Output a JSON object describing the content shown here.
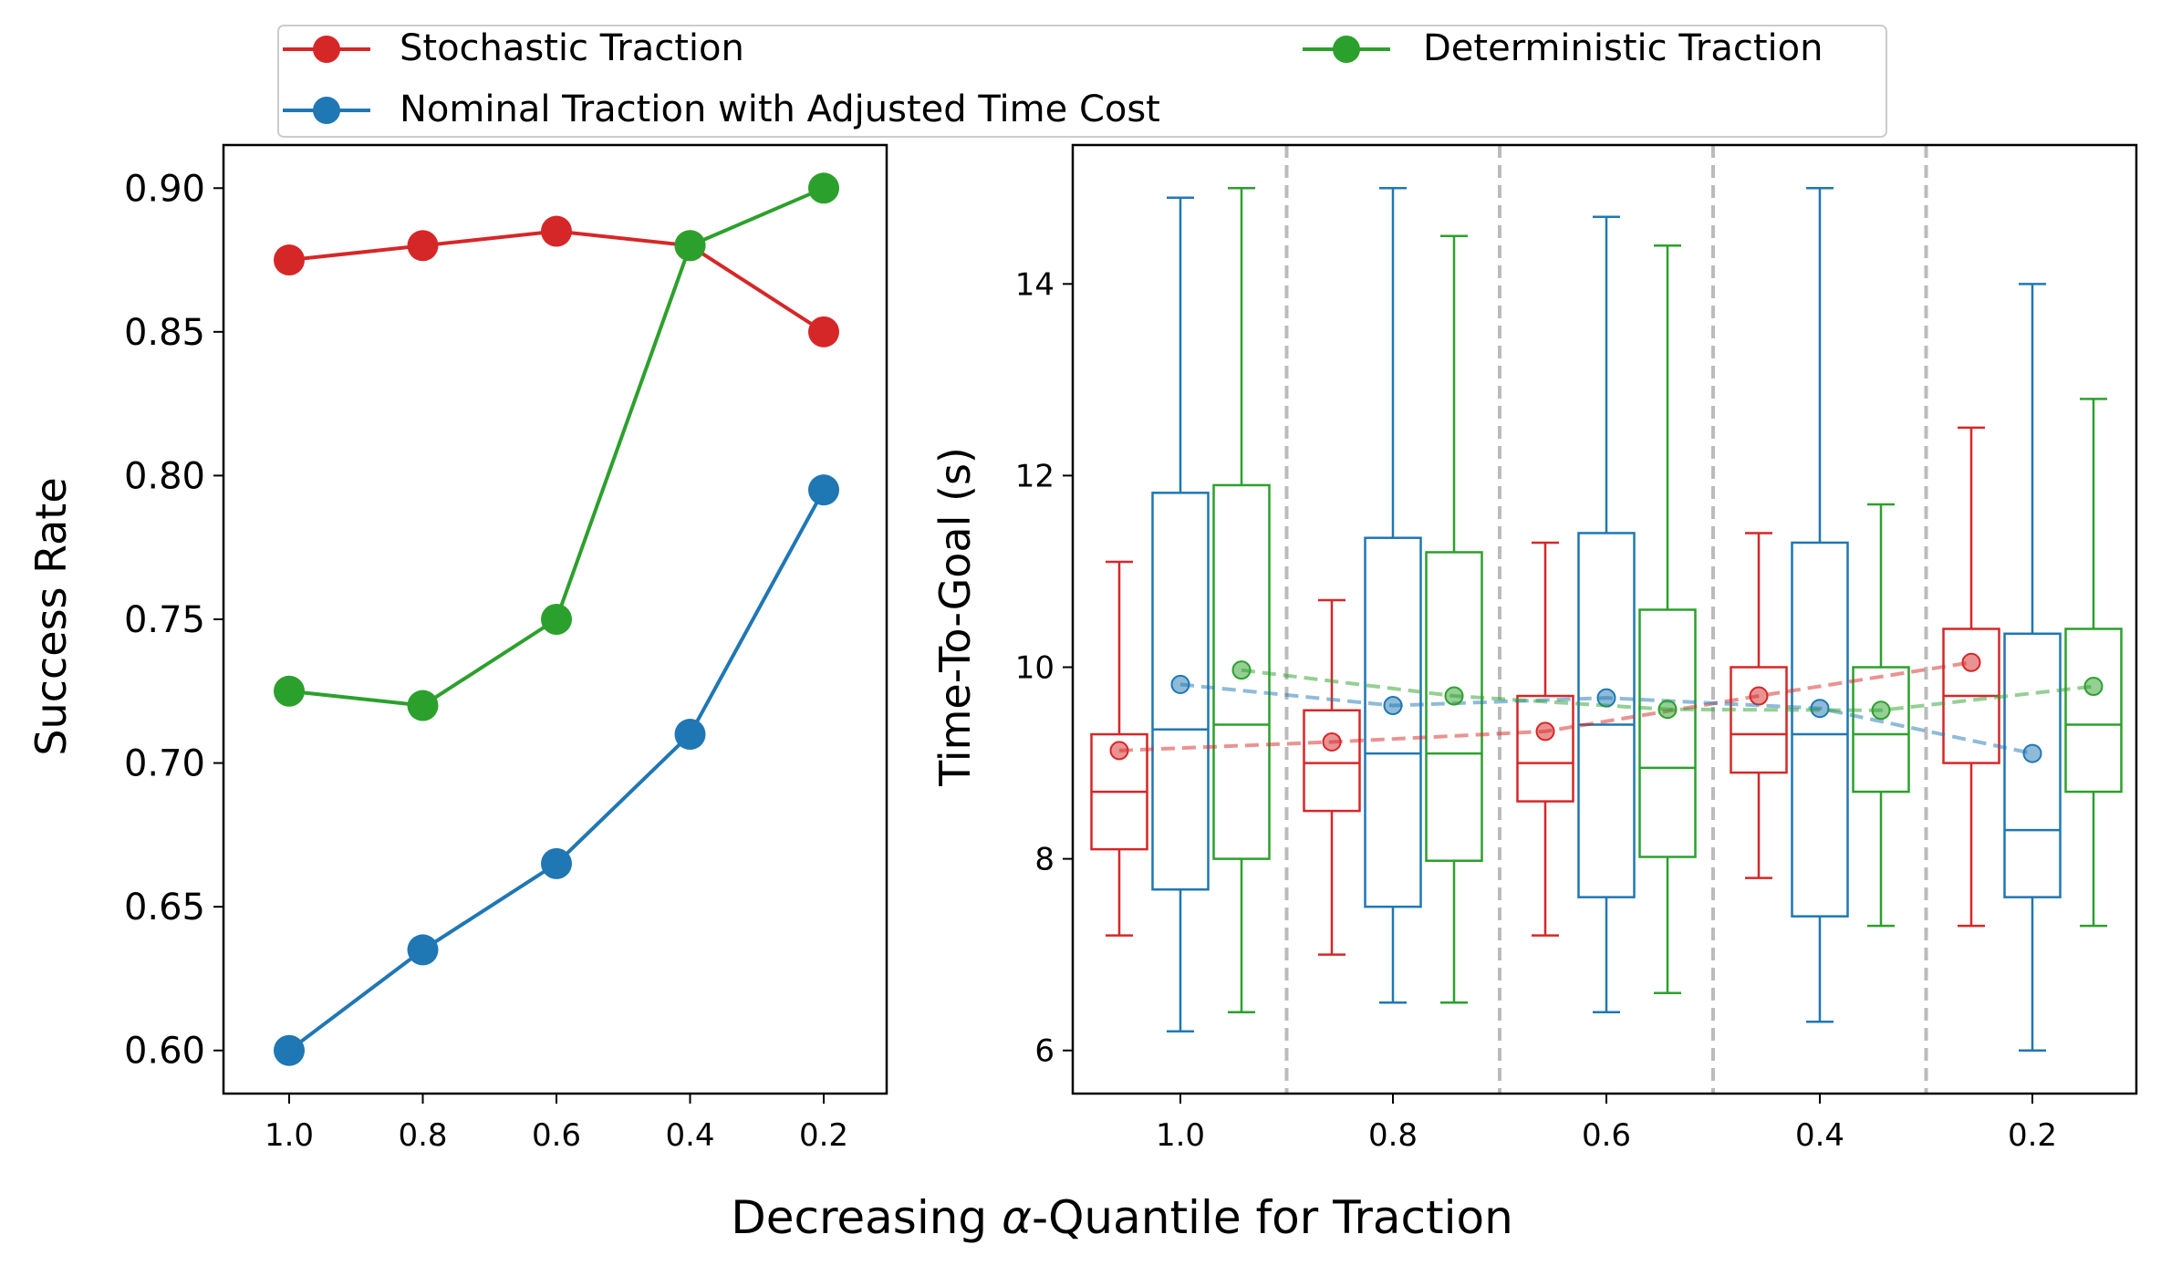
{
  "figure": {
    "xlabel_prefix": "Decreasing ",
    "xlabel_symbol": "α",
    "xlabel_suffix": "-Quantile for Traction"
  },
  "legend": {
    "placement": "top-center",
    "entries": [
      {
        "label": "Stochastic Traction",
        "color": "#d62728"
      },
      {
        "label": "Nominal Traction with Adjusted Time Cost",
        "color": "#1f77b4"
      },
      {
        "label": "Deterministic Traction",
        "color": "#2ca02c"
      }
    ]
  },
  "chart_data": [
    {
      "type": "line",
      "xlabel": "",
      "ylabel": "Success Rate",
      "categories": [
        "1.0",
        "0.8",
        "0.6",
        "0.4",
        "0.2"
      ],
      "ylim": [
        0.585,
        0.915
      ],
      "yticks": [
        "0.60",
        "0.65",
        "0.70",
        "0.75",
        "0.80",
        "0.85",
        "0.90"
      ],
      "grid": false,
      "series": [
        {
          "name": "Stochastic Traction",
          "color": "#d62728",
          "values": [
            0.875,
            0.88,
            0.885,
            0.88,
            0.85
          ]
        },
        {
          "name": "Nominal Traction with Adjusted Time Cost",
          "color": "#1f77b4",
          "values": [
            0.6,
            0.635,
            0.665,
            0.71,
            0.795
          ]
        },
        {
          "name": "Deterministic Traction",
          "color": "#2ca02c",
          "values": [
            0.725,
            0.72,
            0.75,
            0.88,
            0.9
          ]
        }
      ]
    },
    {
      "type": "box",
      "xlabel": "",
      "ylabel": "Time-To-Goal (s)",
      "categories": [
        "1.0",
        "0.8",
        "0.6",
        "0.4",
        "0.2"
      ],
      "ylim": [
        5.55,
        15.45
      ],
      "yticks": [
        "6",
        "8",
        "10",
        "12",
        "14"
      ],
      "grid": false,
      "group_separators": "dashed",
      "series": [
        {
          "name": "Stochastic Traction",
          "color": "#d62728",
          "boxes": [
            {
              "whislo": 7.2,
              "q1": 8.1,
              "med": 8.7,
              "q3": 9.3,
              "whishi": 11.1,
              "mean": 9.13
            },
            {
              "whislo": 7.0,
              "q1": 8.5,
              "med": 9.0,
              "q3": 9.55,
              "whishi": 10.7,
              "mean": 9.22
            },
            {
              "whislo": 7.2,
              "q1": 8.6,
              "med": 9.0,
              "q3": 9.7,
              "whishi": 11.3,
              "mean": 9.33
            },
            {
              "whislo": 7.8,
              "q1": 8.9,
              "med": 9.3,
              "q3": 10.0,
              "whishi": 11.4,
              "mean": 9.7
            },
            {
              "whislo": 7.3,
              "q1": 9.0,
              "med": 9.7,
              "q3": 10.4,
              "whishi": 12.5,
              "mean": 10.05
            }
          ]
        },
        {
          "name": "Nominal Traction with Adjusted Time Cost",
          "color": "#1f77b4",
          "boxes": [
            {
              "whislo": 6.2,
              "q1": 7.68,
              "med": 9.35,
              "q3": 11.82,
              "whishi": 14.9,
              "mean": 9.82
            },
            {
              "whislo": 6.5,
              "q1": 7.5,
              "med": 9.1,
              "q3": 11.35,
              "whishi": 15.0,
              "mean": 9.6
            },
            {
              "whislo": 6.4,
              "q1": 7.6,
              "med": 9.4,
              "q3": 11.4,
              "whishi": 14.7,
              "mean": 9.68
            },
            {
              "whislo": 6.3,
              "q1": 7.4,
              "med": 9.3,
              "q3": 11.3,
              "whishi": 15.0,
              "mean": 9.57
            },
            {
              "whislo": 6.0,
              "q1": 7.6,
              "med": 8.3,
              "q3": 10.35,
              "whishi": 14.0,
              "mean": 9.1
            }
          ]
        },
        {
          "name": "Deterministic Traction",
          "color": "#2ca02c",
          "boxes": [
            {
              "whislo": 6.4,
              "q1": 8.0,
              "med": 9.4,
              "q3": 11.9,
              "whishi": 15.0,
              "mean": 9.97
            },
            {
              "whislo": 6.5,
              "q1": 7.98,
              "med": 9.1,
              "q3": 11.2,
              "whishi": 14.5,
              "mean": 9.7
            },
            {
              "whislo": 6.6,
              "q1": 8.02,
              "med": 8.95,
              "q3": 10.6,
              "whishi": 14.4,
              "mean": 9.56
            },
            {
              "whislo": 7.3,
              "q1": 8.7,
              "med": 9.3,
              "q3": 10.0,
              "whishi": 11.7,
              "mean": 9.55
            },
            {
              "whislo": 7.3,
              "q1": 8.7,
              "med": 9.4,
              "q3": 10.4,
              "whishi": 12.8,
              "mean": 9.8
            }
          ]
        }
      ]
    }
  ]
}
